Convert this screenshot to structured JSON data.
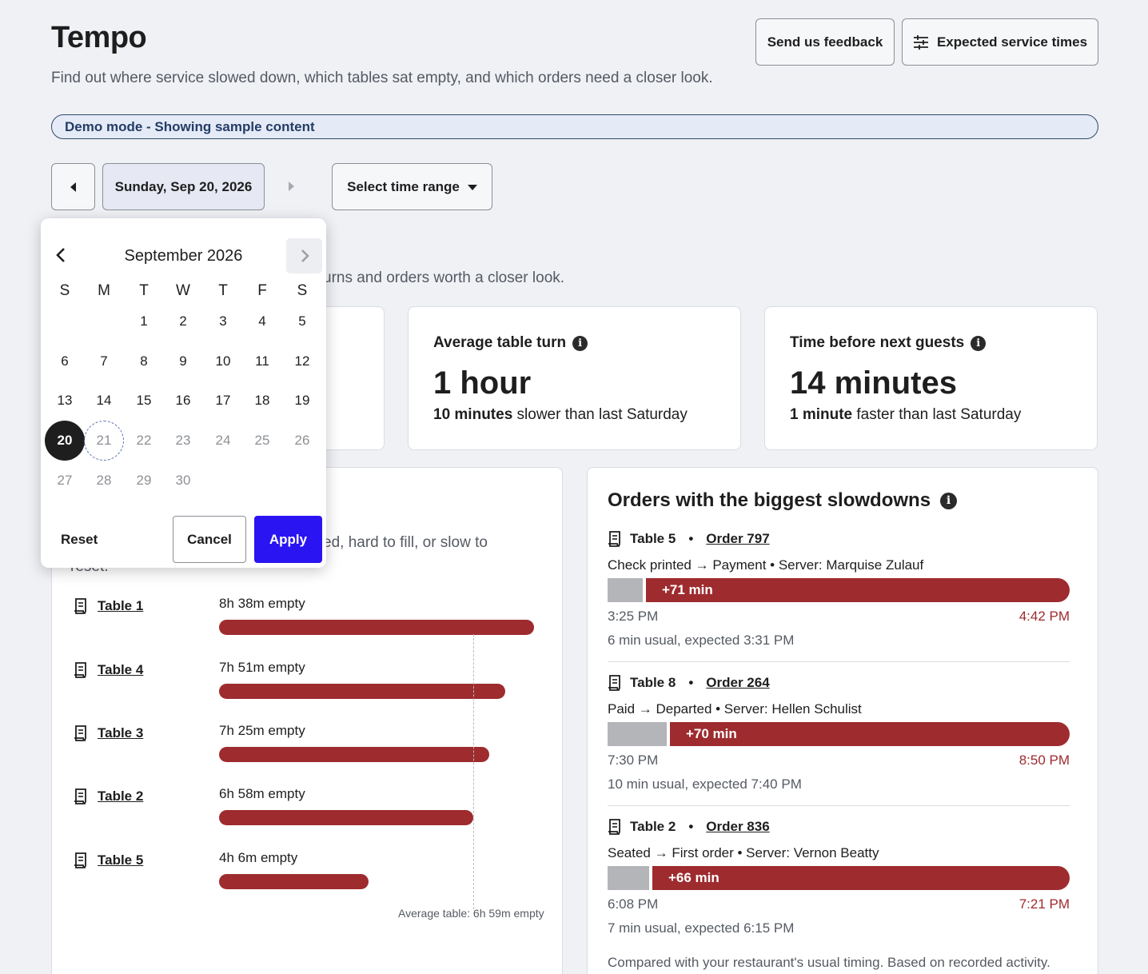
{
  "header": {
    "title": "Tempo",
    "subtitle": "Find out where service slowed down, which tables sat empty, and which orders need a closer look.",
    "feedback_label": "Send us feedback",
    "service_times_label": "Expected service times"
  },
  "demo_banner": "Demo mode - Showing sample content",
  "date_nav": {
    "date_label": "Sunday, Sep 20, 2026",
    "time_range_label": "Select time range"
  },
  "section_intro_fragment": "urns and orders worth a closer look.",
  "metrics": [
    {
      "label": "Average table turn",
      "value": "1 hour",
      "delta_bold": "10 minutes",
      "delta_rest": " slower than last Saturday"
    },
    {
      "label": "Time before next guests",
      "value": "14 minutes",
      "delta_bold": "1 minute",
      "delta_rest": " faster than last Saturday"
    }
  ],
  "empty_tables": {
    "description_fragment": "ed, hard to fill, or slow to",
    "description_fragment2": "reset.",
    "rows": [
      {
        "table": "Table 1",
        "empty": "8h 38m empty",
        "minutes": 518
      },
      {
        "table": "Table 4",
        "empty": "7h 51m empty",
        "minutes": 471
      },
      {
        "table": "Table 3",
        "empty": "7h 25m empty",
        "minutes": 445
      },
      {
        "table": "Table 2",
        "empty": "6h 58m empty",
        "minutes": 418
      },
      {
        "table": "Table 5",
        "empty": "4h 6m empty",
        "minutes": 246
      }
    ],
    "average_note": "Average table: 6h 59m empty"
  },
  "slowdowns": {
    "title": "Orders with the biggest slowdowns",
    "orders": [
      {
        "table": "Table 5",
        "order": "Order 797",
        "desc": "Check printed → Payment • Server: Marquise Zulauf",
        "delta": "+71 min",
        "start": "3:25 PM",
        "end": "4:42 PM",
        "note": "6 min usual, expected 3:31 PM",
        "usual_min": 6,
        "over_min": 71
      },
      {
        "table": "Table 8",
        "order": "Order 264",
        "desc": "Paid → Departed • Server: Hellen Schulist",
        "delta": "+70 min",
        "start": "7:30 PM",
        "end": "8:50 PM",
        "note": "10 min usual, expected 7:40 PM",
        "usual_min": 10,
        "over_min": 70
      },
      {
        "table": "Table 2",
        "order": "Order 836",
        "desc": "Seated → First order • Server: Vernon Beatty",
        "delta": "+66 min",
        "start": "6:08 PM",
        "end": "7:21 PM",
        "note": "7 min usual, expected 6:15 PM",
        "usual_min": 7,
        "over_min": 66
      }
    ],
    "footnote": "Compared with your restaurant's usual timing. Based on recorded activity."
  },
  "calendar": {
    "month_label": "September 2026",
    "weekdays": [
      "S",
      "M",
      "T",
      "W",
      "T",
      "F",
      "S"
    ],
    "first_weekday": 2,
    "days_in_month": 30,
    "selected_day": 20,
    "today_day": 21,
    "reset_label": "Reset",
    "cancel_label": "Cancel",
    "apply_label": "Apply"
  },
  "colors": {
    "accent": "#2a15f2",
    "bar_red": "#9e2b2e",
    "usual_gray": "#b4b5b9",
    "demo_bg": "#e4ebf6"
  }
}
